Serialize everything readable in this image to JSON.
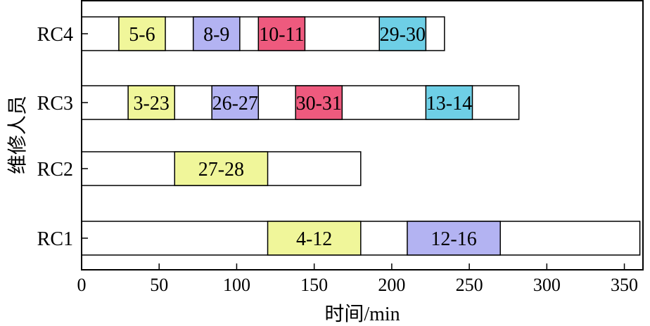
{
  "chart_data": {
    "type": "gantt",
    "xlabel": "时间/min",
    "ylabel": "维修人员",
    "xlim": [
      0,
      362
    ],
    "xticks": [
      0,
      50,
      100,
      150,
      200,
      250,
      300,
      350
    ],
    "categories": [
      "RC1",
      "RC2",
      "RC3",
      "RC4"
    ],
    "colors": {
      "yellow": "#f0f69a",
      "purple": "#b3b3f2",
      "red": "#ee5a7e",
      "cyan": "#6ecfe6",
      "frame": "#ffffff"
    },
    "rows": [
      {
        "name": "RC1",
        "end": 360,
        "tasks": [
          {
            "label": "4-12",
            "start": 120,
            "end": 180,
            "color": "yellow"
          },
          {
            "label": "12-16",
            "start": 210,
            "end": 270,
            "color": "purple"
          }
        ]
      },
      {
        "name": "RC2",
        "end": 180,
        "tasks": [
          {
            "label": "27-28",
            "start": 60,
            "end": 120,
            "color": "yellow"
          }
        ]
      },
      {
        "name": "RC3",
        "end": 282,
        "tasks": [
          {
            "label": "3-23",
            "start": 30,
            "end": 60,
            "color": "yellow"
          },
          {
            "label": "26-27",
            "start": 84,
            "end": 114,
            "color": "purple"
          },
          {
            "label": "30-31",
            "start": 138,
            "end": 168,
            "color": "red"
          },
          {
            "label": "13-14",
            "start": 222,
            "end": 252,
            "color": "cyan"
          }
        ]
      },
      {
        "name": "RC4",
        "end": 234,
        "tasks": [
          {
            "label": "5-6",
            "start": 24,
            "end": 54,
            "color": "yellow"
          },
          {
            "label": "8-9",
            "start": 72,
            "end": 102,
            "color": "purple"
          },
          {
            "label": "10-11",
            "start": 114,
            "end": 144,
            "color": "red"
          },
          {
            "label": "29-30",
            "start": 192,
            "end": 222,
            "color": "cyan"
          }
        ]
      }
    ]
  }
}
